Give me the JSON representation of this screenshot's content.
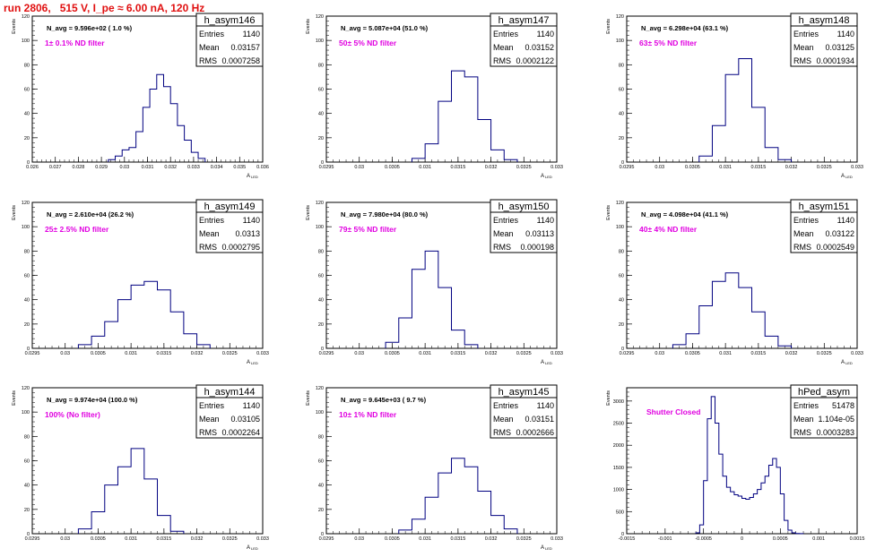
{
  "header": {
    "text": "run 2806,   515 V, I_pe ≈ 6.00 nA, 120 Hz",
    "color": "#e01010"
  },
  "style": {
    "hist_color": "#000080",
    "annot_color": "#e000e0"
  },
  "chart_data": [
    {
      "type": "histogram",
      "title": "h_asym146",
      "navg": "N_avg = 9.596e+02 ( 1.0 %)",
      "filter": "1± 0.1% ND filter",
      "stats": [
        [
          "Entries",
          "1140"
        ],
        [
          "Mean",
          "0.03157"
        ],
        [
          "RMS",
          "0.0007258"
        ]
      ],
      "xlabel": "A_LED",
      "xlabel_main": "A",
      "xlabel_sub": "LED",
      "ylabel": "Events",
      "xlim": [
        0.026,
        0.036
      ],
      "ylim": [
        0,
        120
      ],
      "xticks": [
        0.026,
        0.027,
        0.028,
        0.029,
        0.03,
        0.031,
        0.032,
        0.033,
        0.034,
        0.035,
        0.036
      ],
      "xticklabels": [
        "0.026",
        "0.027",
        "0.028",
        "0.029",
        "0.03",
        "0.031",
        "0.032",
        "0.033",
        "0.034",
        "0.035",
        "0.036"
      ],
      "yticks": [
        0,
        20,
        40,
        60,
        80,
        100,
        120
      ],
      "edges": [
        0.0293,
        0.0296,
        0.0299,
        0.0302,
        0.0305,
        0.0308,
        0.0311,
        0.0314,
        0.0317,
        0.032,
        0.0323,
        0.0326,
        0.0329,
        0.0332,
        0.0335
      ],
      "counts": [
        2,
        5,
        10,
        12,
        25,
        45,
        60,
        72,
        62,
        48,
        30,
        18,
        8,
        3
      ]
    },
    {
      "type": "histogram",
      "title": "h_asym147",
      "navg": "N_avg = 5.087e+04 (51.0 %)",
      "filter": "50± 5% ND filter",
      "stats": [
        [
          "Entries",
          "1140"
        ],
        [
          "Mean",
          "0.03152"
        ],
        [
          "RMS",
          "0.0002122"
        ]
      ],
      "xlabel": "A_LED",
      "xlabel_main": "A",
      "xlabel_sub": "LED",
      "ylabel": "Events",
      "xlim": [
        0.0295,
        0.033
      ],
      "ylim": [
        0,
        120
      ],
      "xticks": [
        0.0295,
        0.03,
        0.0305,
        0.031,
        0.0315,
        0.032,
        0.0325,
        0.033
      ],
      "xticklabels": [
        "0.0295",
        "0.03",
        "0.0305",
        "0.031",
        "0.0315",
        "0.032",
        "0.0325",
        "0.033"
      ],
      "yticks": [
        0,
        20,
        40,
        60,
        80,
        100,
        120
      ],
      "edges": [
        0.0308,
        0.031,
        0.0312,
        0.0314,
        0.0316,
        0.0318,
        0.032,
        0.0322,
        0.0324
      ],
      "counts": [
        3,
        15,
        50,
        75,
        70,
        35,
        10,
        2
      ]
    },
    {
      "type": "histogram",
      "title": "h_asym148",
      "navg": "N_avg = 6.298e+04 (63.1 %)",
      "filter": "63± 5% ND filter",
      "stats": [
        [
          "Entries",
          "1140"
        ],
        [
          "Mean",
          "0.03125"
        ],
        [
          "RMS",
          "0.0001934"
        ]
      ],
      "xlabel": "A_LED",
      "xlabel_main": "A",
      "xlabel_sub": "LED",
      "ylabel": "Events",
      "xlim": [
        0.0295,
        0.033
      ],
      "ylim": [
        0,
        120
      ],
      "xticks": [
        0.0295,
        0.03,
        0.0305,
        0.031,
        0.0315,
        0.032,
        0.0325,
        0.033
      ],
      "xticklabels": [
        "0.0295",
        "0.03",
        "0.0305",
        "0.031",
        "0.0315",
        "0.032",
        "0.0325",
        "0.033"
      ],
      "yticks": [
        0,
        20,
        40,
        60,
        80,
        100,
        120
      ],
      "edges": [
        0.0306,
        0.0308,
        0.031,
        0.0312,
        0.0314,
        0.0316,
        0.0318,
        0.032
      ],
      "counts": [
        5,
        30,
        72,
        85,
        45,
        12,
        2
      ]
    },
    {
      "type": "histogram",
      "title": "h_asym149",
      "navg": "N_avg = 2.610e+04 (26.2 %)",
      "filter": "25± 2.5% ND filter",
      "stats": [
        [
          "Entries",
          "1140"
        ],
        [
          "Mean",
          "0.0313"
        ],
        [
          "RMS",
          "0.0002795"
        ]
      ],
      "xlabel": "A_LED",
      "xlabel_main": "A",
      "xlabel_sub": "LED",
      "ylabel": "Events",
      "xlim": [
        0.0295,
        0.033
      ],
      "ylim": [
        0,
        120
      ],
      "xticks": [
        0.0295,
        0.03,
        0.0305,
        0.031,
        0.0315,
        0.032,
        0.0325,
        0.033
      ],
      "xticklabels": [
        "0.0295",
        "0.03",
        "0.0305",
        "0.031",
        "0.0315",
        "0.032",
        "0.0325",
        "0.033"
      ],
      "yticks": [
        0,
        20,
        40,
        60,
        80,
        100,
        120
      ],
      "edges": [
        0.0302,
        0.0304,
        0.0306,
        0.0308,
        0.031,
        0.0312,
        0.0314,
        0.0316,
        0.0318,
        0.032,
        0.0322
      ],
      "counts": [
        3,
        10,
        22,
        40,
        52,
        55,
        48,
        30,
        12,
        3
      ]
    },
    {
      "type": "histogram",
      "title": "h_asym150",
      "navg": "N_avg = 7.980e+04 (80.0 %)",
      "filter": "79± 5% ND filter",
      "stats": [
        [
          "Entries",
          "1140"
        ],
        [
          "Mean",
          "0.03113"
        ],
        [
          "RMS",
          "0.000198"
        ]
      ],
      "xlabel": "A_LED",
      "xlabel_main": "A",
      "xlabel_sub": "LED",
      "ylabel": "Events",
      "xlim": [
        0.0295,
        0.033
      ],
      "ylim": [
        0,
        120
      ],
      "xticks": [
        0.0295,
        0.03,
        0.0305,
        0.031,
        0.0315,
        0.032,
        0.0325,
        0.033
      ],
      "xticklabels": [
        "0.0295",
        "0.03",
        "0.0305",
        "0.031",
        "0.0315",
        "0.032",
        "0.0325",
        "0.033"
      ],
      "yticks": [
        0,
        20,
        40,
        60,
        80,
        100,
        120
      ],
      "edges": [
        0.0304,
        0.0306,
        0.0308,
        0.031,
        0.0312,
        0.0314,
        0.0316,
        0.0318
      ],
      "counts": [
        5,
        25,
        65,
        80,
        50,
        15,
        3
      ]
    },
    {
      "type": "histogram",
      "title": "h_asym151",
      "navg": "N_avg = 4.098e+04 (41.1 %)",
      "filter": "40± 4% ND filter",
      "stats": [
        [
          "Entries",
          "1140"
        ],
        [
          "Mean",
          "0.03122"
        ],
        [
          "RMS",
          "0.0002549"
        ]
      ],
      "xlabel": "A_LED",
      "xlabel_main": "A",
      "xlabel_sub": "LED",
      "ylabel": "Events",
      "xlim": [
        0.0295,
        0.033
      ],
      "ylim": [
        0,
        120
      ],
      "xticks": [
        0.0295,
        0.03,
        0.0305,
        0.031,
        0.0315,
        0.032,
        0.0325,
        0.033
      ],
      "xticklabels": [
        "0.0295",
        "0.03",
        "0.0305",
        "0.031",
        "0.0315",
        "0.032",
        "0.0325",
        "0.033"
      ],
      "yticks": [
        0,
        20,
        40,
        60,
        80,
        100,
        120
      ],
      "edges": [
        0.0302,
        0.0304,
        0.0306,
        0.0308,
        0.031,
        0.0312,
        0.0314,
        0.0316,
        0.0318,
        0.032
      ],
      "counts": [
        3,
        12,
        35,
        55,
        62,
        50,
        30,
        10,
        2
      ]
    },
    {
      "type": "histogram",
      "title": "h_asym144",
      "navg": "N_avg = 9.974e+04 (100.0 %)",
      "filter": "100% (No filter)",
      "stats": [
        [
          "Entries",
          "1140"
        ],
        [
          "Mean",
          "0.03105"
        ],
        [
          "RMS",
          "0.0002264"
        ]
      ],
      "xlabel": "A_LED",
      "xlabel_main": "A",
      "xlabel_sub": "LED",
      "ylabel": "Events",
      "xlim": [
        0.0295,
        0.033
      ],
      "ylim": [
        0,
        120
      ],
      "xticks": [
        0.0295,
        0.03,
        0.0305,
        0.031,
        0.0315,
        0.032,
        0.0325,
        0.033
      ],
      "xticklabels": [
        "0.0295",
        "0.03",
        "0.0305",
        "0.031",
        "0.0315",
        "0.032",
        "0.0325",
        "0.033"
      ],
      "yticks": [
        0,
        20,
        40,
        60,
        80,
        100,
        120
      ],
      "edges": [
        0.0302,
        0.0304,
        0.0306,
        0.0308,
        0.031,
        0.0312,
        0.0314,
        0.0316,
        0.0318
      ],
      "counts": [
        4,
        18,
        40,
        55,
        70,
        45,
        15,
        2
      ]
    },
    {
      "type": "histogram",
      "title": "h_asym145",
      "navg": "N_avg = 9.645e+03 ( 9.7 %)",
      "filter": "10± 1% ND filter",
      "stats": [
        [
          "Entries",
          "1140"
        ],
        [
          "Mean",
          "0.03151"
        ],
        [
          "RMS",
          "0.0002666"
        ]
      ],
      "xlabel": "A_LED",
      "xlabel_main": "A",
      "xlabel_sub": "LED",
      "ylabel": "Events",
      "xlim": [
        0.0295,
        0.033
      ],
      "ylim": [
        0,
        120
      ],
      "xticks": [
        0.0295,
        0.03,
        0.0305,
        0.031,
        0.0315,
        0.032,
        0.0325,
        0.033
      ],
      "xticklabels": [
        "0.0295",
        "0.03",
        "0.0305",
        "0.031",
        "0.0315",
        "0.032",
        "0.0325",
        "0.033"
      ],
      "yticks": [
        0,
        20,
        40,
        60,
        80,
        100,
        120
      ],
      "edges": [
        0.0306,
        0.0308,
        0.031,
        0.0312,
        0.0314,
        0.0316,
        0.0318,
        0.032,
        0.0322,
        0.0324
      ],
      "counts": [
        3,
        12,
        30,
        50,
        62,
        55,
        35,
        15,
        4
      ]
    },
    {
      "type": "histogram",
      "title": "hPed_asym",
      "navg": "",
      "filter": "Shutter Closed",
      "stats": [
        [
          "Entries",
          "51478"
        ],
        [
          "Mean",
          "1.104e-05"
        ],
        [
          "RMS",
          "0.0003283"
        ]
      ],
      "xlabel": "",
      "xlabel_main": "",
      "xlabel_sub": "",
      "ylabel": "Events",
      "xlim": [
        -0.0015,
        0.0015
      ],
      "ylim": [
        0,
        3300
      ],
      "xticks": [
        -0.0015,
        -0.001,
        -0.0005,
        0,
        0.0005,
        0.001,
        0.0015
      ],
      "xticklabels": [
        "-0.0015",
        "-0.001",
        "-0.0005",
        "0",
        "0.0005",
        "0.001",
        "0.0015"
      ],
      "yticks": [
        0,
        500,
        1000,
        1500,
        2000,
        2500,
        3000
      ],
      "edges": [
        -0.0006,
        -0.00055,
        -0.0005,
        -0.00045,
        -0.0004,
        -0.00035,
        -0.0003,
        -0.00025,
        -0.0002,
        -0.00015,
        -0.0001,
        -5e-05,
        0,
        5e-05,
        0.0001,
        0.00015,
        0.0002,
        0.00025,
        0.0003,
        0.00035,
        0.0004,
        0.00045,
        0.0005,
        0.00055,
        0.0006,
        0.00065,
        0.0007,
        0.00075,
        0.0008
      ],
      "counts": [
        20,
        200,
        1200,
        2600,
        3100,
        2500,
        1800,
        1300,
        1050,
        950,
        880,
        850,
        800,
        780,
        820,
        900,
        1000,
        1150,
        1300,
        1550,
        1700,
        1500,
        900,
        300,
        80,
        20,
        5,
        2
      ]
    }
  ]
}
